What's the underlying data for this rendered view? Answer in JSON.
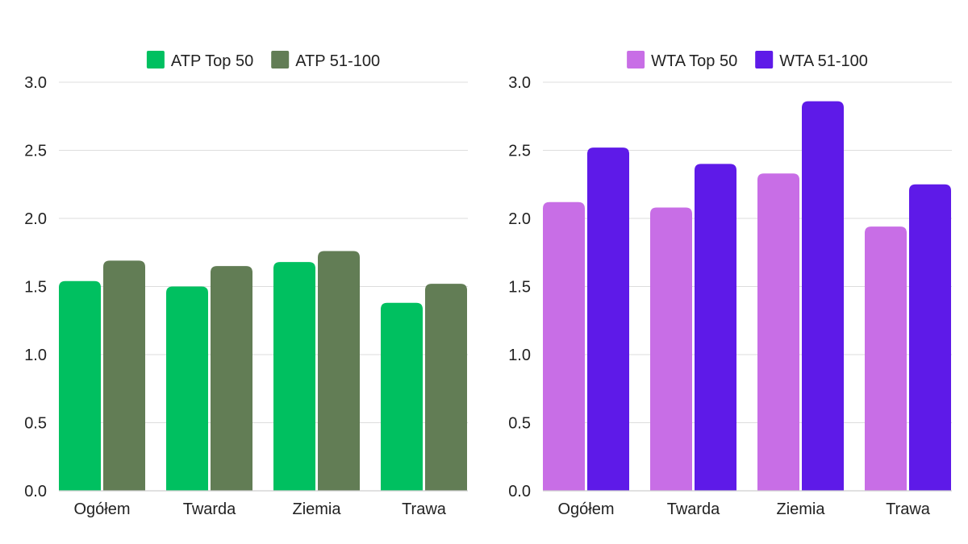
{
  "chart_data": [
    {
      "type": "bar",
      "categories": [
        "Ogółem",
        "Twarda",
        "Ziemia",
        "Trawa"
      ],
      "series": [
        {
          "name": "ATP Top 50",
          "color": "#00c060",
          "values": [
            1.54,
            1.5,
            1.68,
            1.38
          ]
        },
        {
          "name": "ATP 51-100",
          "color": "#627d55",
          "values": [
            1.69,
            1.65,
            1.76,
            1.52
          ]
        }
      ],
      "yticks": [
        "0.0",
        "0.5",
        "1.0",
        "1.5",
        "2.0",
        "2.5",
        "3.0"
      ],
      "ylim": [
        0,
        3.0
      ],
      "grid": true,
      "legend_position": "top-center"
    },
    {
      "type": "bar",
      "categories": [
        "Ogółem",
        "Twarda",
        "Ziemia",
        "Trawa"
      ],
      "series": [
        {
          "name": "WTA Top 50",
          "color": "#c86ee6",
          "values": [
            2.12,
            2.08,
            2.33,
            1.94
          ]
        },
        {
          "name": "WTA 51-100",
          "color": "#5e1ae8",
          "values": [
            2.52,
            2.4,
            2.86,
            2.25
          ]
        }
      ],
      "yticks": [
        "0.0",
        "0.5",
        "1.0",
        "1.5",
        "2.0",
        "2.5",
        "3.0"
      ],
      "ylim": [
        0,
        3.0
      ],
      "grid": true,
      "legend_position": "top-center"
    }
  ]
}
